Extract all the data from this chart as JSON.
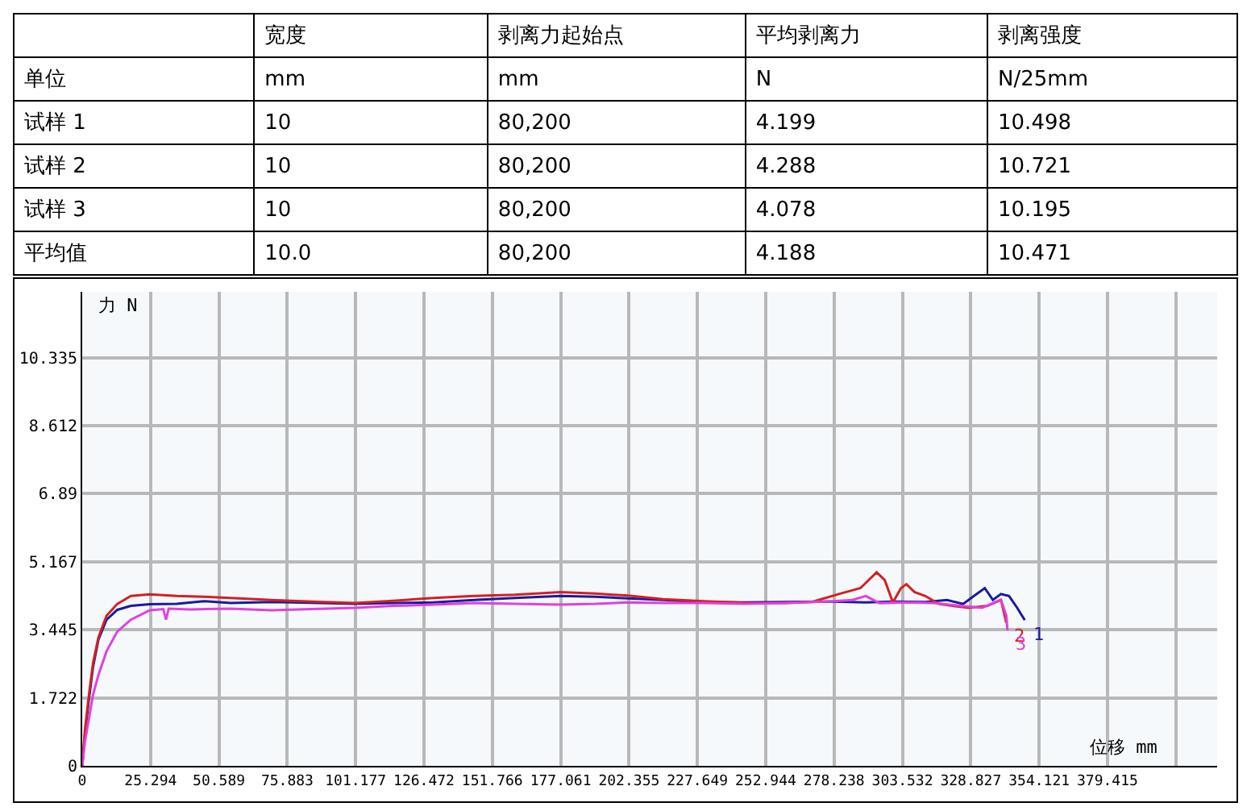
{
  "chart_data": [
    {
      "type": "other",
      "categories": [
        null,
        "宽度",
        "剥离力起始点",
        "平均剥离力",
        "剥离强度"
      ],
      "y_categories": [
        "单位",
        "试样 1",
        "试样 2",
        "试样 3",
        "平均值"
      ],
      "cell_labels": [
        [
          "mm",
          "mm",
          "N",
          "N/25mm"
        ],
        [
          "10",
          "80,200",
          "4.199",
          "10.498"
        ],
        [
          "10",
          "80,200",
          "4.288",
          "10.721"
        ],
        [
          "10",
          "80,200",
          "4.078",
          "10.195"
        ],
        [
          "10.0",
          "80,200",
          "4.188",
          "10.471"
        ]
      ]
    },
    {
      "type": "line",
      "xlabel": "位移 mm",
      "ylabel": "力 N",
      "xlim": [
        0,
        420
      ],
      "ylim": [
        0,
        12
      ],
      "xticks": [
        0,
        25.294,
        50.589,
        75.883,
        101.177,
        126.472,
        151.766,
        177.061,
        202.355,
        227.649,
        252.944,
        278.238,
        303.532,
        328.827,
        354.121,
        379.415,
        {
          "value": 404.709,
          "label": null
        }
      ],
      "yticks": [
        0,
        1.722,
        3.445,
        5.167,
        6.89,
        8.612,
        10.335
      ],
      "grid": true,
      "legend": false,
      "series": [
        {
          "name": "1",
          "color": "#1a1aa0",
          "x": [
            0,
            1,
            2.5,
            4,
            6,
            9,
            13,
            18,
            25,
            35,
            45,
            55,
            70,
            85,
            101,
            115,
            130,
            145,
            160,
            177,
            190,
            202,
            215,
            230,
            245,
            260,
            278,
            290,
            300,
            312,
            320,
            326,
            330,
            334,
            337,
            340,
            343,
            346,
            348.8
          ],
          "values": [
            0,
            0.8,
            1.7,
            2.5,
            3.2,
            3.7,
            3.95,
            4.05,
            4.09,
            4.1,
            4.17,
            4.12,
            4.15,
            4.13,
            4.1,
            4.12,
            4.14,
            4.2,
            4.25,
            4.3,
            4.28,
            4.24,
            4.2,
            4.15,
            4.14,
            4.15,
            4.16,
            4.14,
            4.16,
            4.15,
            4.2,
            4.1,
            4.3,
            4.5,
            4.2,
            4.35,
            4.3,
            4.0,
            3.69
          ]
        },
        {
          "name": "2",
          "color": "#d42020",
          "x": [
            0,
            1,
            2.5,
            4,
            6,
            9,
            13,
            18,
            25,
            35,
            45,
            55,
            70,
            85,
            101,
            115,
            130,
            145,
            160,
            177,
            190,
            202,
            215,
            230,
            245,
            260,
            270,
            280,
            288,
            294,
            297,
            300,
            303,
            305,
            308,
            312,
            317,
            322,
            328,
            335,
            340,
            342
          ],
          "values": [
            0,
            0.9,
            1.8,
            2.6,
            3.25,
            3.8,
            4.1,
            4.3,
            4.34,
            4.3,
            4.28,
            4.25,
            4.2,
            4.16,
            4.12,
            4.18,
            4.25,
            4.3,
            4.33,
            4.4,
            4.36,
            4.31,
            4.22,
            4.17,
            4.13,
            4.12,
            4.15,
            4.35,
            4.5,
            4.9,
            4.7,
            4.14,
            4.5,
            4.6,
            4.4,
            4.3,
            4.1,
            4.05,
            4.0,
            4.05,
            4.2,
            3.62
          ]
        },
        {
          "name": "3",
          "color": "#e040e0",
          "x": [
            0,
            1,
            2.5,
            4,
            6,
            9,
            13,
            18,
            25,
            30,
            31,
            32,
            40,
            55,
            70,
            85,
            101,
            115,
            130,
            145,
            160,
            177,
            190,
            202,
            215,
            230,
            245,
            260,
            278,
            285,
            290,
            295,
            305,
            315,
            325,
            333,
            338,
            340,
            342,
            342.4
          ],
          "values": [
            0,
            0.6,
            1.2,
            1.8,
            2.3,
            2.9,
            3.4,
            3.7,
            3.94,
            3.97,
            3.7,
            3.98,
            3.96,
            3.98,
            3.94,
            3.97,
            4.0,
            4.05,
            4.08,
            4.12,
            4.1,
            4.08,
            4.1,
            4.14,
            4.12,
            4.12,
            4.1,
            4.12,
            4.17,
            4.2,
            4.3,
            4.12,
            4.14,
            4.12,
            4.05,
            4.0,
            4.15,
            4.2,
            3.8,
            3.43
          ]
        }
      ]
    }
  ]
}
